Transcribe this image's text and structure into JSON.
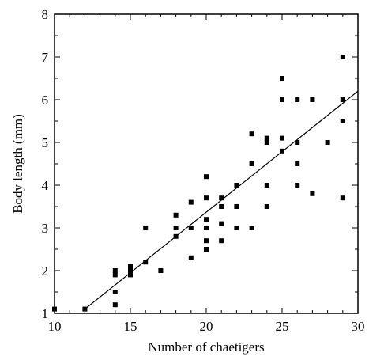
{
  "chart_data": {
    "type": "scatter",
    "xlabel": "Number of chaetigers",
    "ylabel": "Body length (mm)",
    "xlim": [
      10,
      30
    ],
    "ylim": [
      1,
      8
    ],
    "x_ticks": [
      10,
      15,
      20,
      25,
      30
    ],
    "y_ticks": [
      1,
      2,
      3,
      4,
      5,
      6,
      7,
      8
    ],
    "grid": false,
    "legend": "none",
    "points": [
      {
        "x": 10,
        "y": 1.1
      },
      {
        "x": 12,
        "y": 1.1
      },
      {
        "x": 14,
        "y": 1.2
      },
      {
        "x": 14,
        "y": 1.5
      },
      {
        "x": 14,
        "y": 1.9
      },
      {
        "x": 14,
        "y": 2.0
      },
      {
        "x": 15,
        "y": 1.9
      },
      {
        "x": 15,
        "y": 2.0
      },
      {
        "x": 15,
        "y": 2.1
      },
      {
        "x": 16,
        "y": 2.2
      },
      {
        "x": 16,
        "y": 3.0
      },
      {
        "x": 17,
        "y": 2.0
      },
      {
        "x": 18,
        "y": 2.8
      },
      {
        "x": 18,
        "y": 3.0
      },
      {
        "x": 18,
        "y": 3.3
      },
      {
        "x": 19,
        "y": 2.3
      },
      {
        "x": 19,
        "y": 3.0
      },
      {
        "x": 19,
        "y": 3.6
      },
      {
        "x": 20,
        "y": 2.5
      },
      {
        "x": 20,
        "y": 2.7
      },
      {
        "x": 20,
        "y": 3.0
      },
      {
        "x": 20,
        "y": 3.2
      },
      {
        "x": 20,
        "y": 3.7
      },
      {
        "x": 20,
        "y": 4.2
      },
      {
        "x": 21,
        "y": 2.7
      },
      {
        "x": 21,
        "y": 3.1
      },
      {
        "x": 21,
        "y": 3.5
      },
      {
        "x": 21,
        "y": 3.7
      },
      {
        "x": 22,
        "y": 3.0
      },
      {
        "x": 22,
        "y": 3.5
      },
      {
        "x": 22,
        "y": 4.0
      },
      {
        "x": 23,
        "y": 3.0
      },
      {
        "x": 23,
        "y": 4.5
      },
      {
        "x": 23,
        "y": 5.2
      },
      {
        "x": 24,
        "y": 3.5
      },
      {
        "x": 24,
        "y": 4.0
      },
      {
        "x": 24,
        "y": 5.0
      },
      {
        "x": 24,
        "y": 5.1
      },
      {
        "x": 25,
        "y": 4.8
      },
      {
        "x": 25,
        "y": 5.1
      },
      {
        "x": 25,
        "y": 6.0
      },
      {
        "x": 25,
        "y": 6.5
      },
      {
        "x": 26,
        "y": 4.0
      },
      {
        "x": 26,
        "y": 4.5
      },
      {
        "x": 26,
        "y": 5.0
      },
      {
        "x": 26,
        "y": 6.0
      },
      {
        "x": 27,
        "y": 3.8
      },
      {
        "x": 27,
        "y": 6.0
      },
      {
        "x": 28,
        "y": 5.0
      },
      {
        "x": 29,
        "y": 3.7
      },
      {
        "x": 29,
        "y": 5.5
      },
      {
        "x": 29,
        "y": 6.0
      },
      {
        "x": 29,
        "y": 7.0
      }
    ],
    "trendline": {
      "x": [
        12,
        30
      ],
      "y": [
        1.1,
        6.2
      ]
    }
  }
}
